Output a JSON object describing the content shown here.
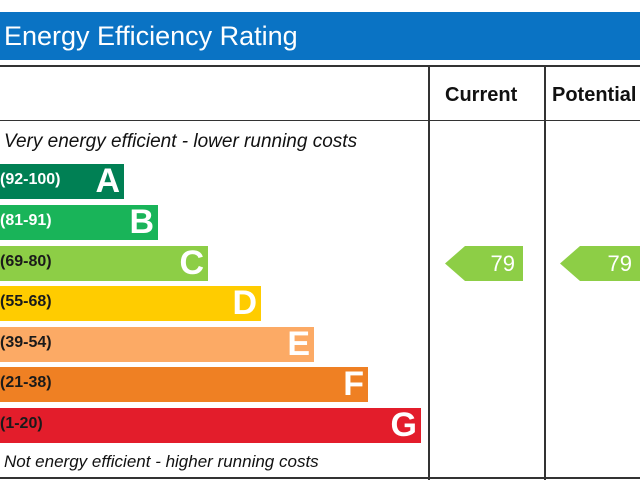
{
  "chart_data": {
    "type": "bar",
    "title": "Energy Efficiency Rating",
    "columns": [
      "Current",
      "Potential"
    ],
    "top_note": "Very energy efficient - lower running costs",
    "bottom_note": "Not energy efficient - higher running costs",
    "bands": [
      {
        "letter": "A",
        "range": "(92-100)",
        "color": "#008054",
        "text_color": "#ffffff"
      },
      {
        "letter": "B",
        "range": "(81-91)",
        "color": "#19b459",
        "text_color": "#ffffff"
      },
      {
        "letter": "C",
        "range": "(69-80)",
        "color": "#8dce46",
        "text_color": "#1a1a1a"
      },
      {
        "letter": "D",
        "range": "(55-68)",
        "color": "#ffcc00",
        "text_color": "#1a1a1a"
      },
      {
        "letter": "E",
        "range": "(39-54)",
        "color": "#fcaa65",
        "text_color": "#1a1a1a"
      },
      {
        "letter": "F",
        "range": "(21-38)",
        "color": "#ef8023",
        "text_color": "#1a1a1a"
      },
      {
        "letter": "G",
        "range": "(1-20)",
        "color": "#e31d2b",
        "text_color": "#1a1a1a"
      }
    ],
    "current": {
      "value": 79,
      "band": "C"
    },
    "potential": {
      "value": 79,
      "band": "C"
    }
  },
  "header_color": "#0a73c4"
}
